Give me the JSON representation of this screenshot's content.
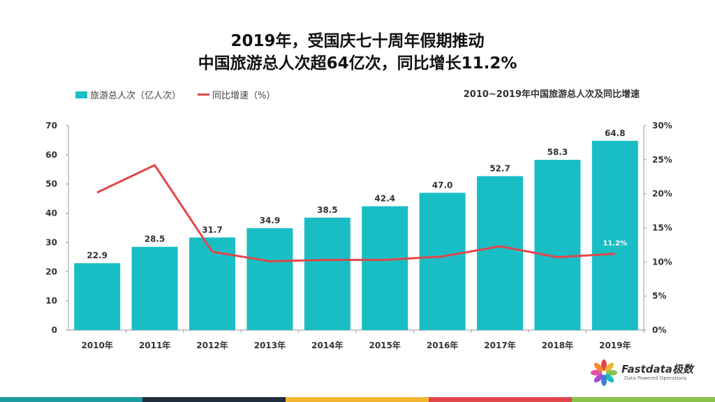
{
  "title_line1": "2019年，受国庆七十周年假期推动",
  "title_line2": "中国旅游总人次超64亿次，同比增长11.2%",
  "chart_subtitle": "2010~2019年中国旅游总人次及同比增速",
  "logo": {
    "name": "Fastdata极数",
    "tagline": "Data Powered Operations"
  },
  "colors": {
    "bar": "#19BEC5",
    "line": "#E0464A",
    "footer": [
      "#1B9AA0",
      "#1F2D3D",
      "#F2B531",
      "#E0464A",
      "#8BC34A"
    ]
  },
  "chart_data": {
    "type": "bar+line",
    "categories": [
      "2010年",
      "2011年",
      "2012年",
      "2013年",
      "2014年",
      "2015年",
      "2016年",
      "2017年",
      "2018年",
      "2019年"
    ],
    "series": [
      {
        "name": "旅游总人次（亿人次）",
        "type": "bar",
        "axis": "left",
        "values": [
          22.9,
          28.5,
          31.7,
          34.9,
          38.5,
          42.4,
          47.0,
          52.7,
          58.3,
          64.8
        ],
        "labels": [
          "22.9",
          "28.5",
          "31.7",
          "34.9",
          "38.5",
          "42.4",
          "47.0",
          "52.7",
          "58.3",
          "64.8"
        ]
      },
      {
        "name": "同比增速（%）",
        "type": "line",
        "axis": "right",
        "values": [
          20.2,
          24.2,
          11.5,
          10.1,
          10.3,
          10.3,
          10.8,
          12.3,
          10.7,
          11.2
        ],
        "last_label": "11.2%"
      }
    ],
    "y_left": {
      "min": 0,
      "max": 70,
      "ticks": [
        "0",
        "10",
        "20",
        "30",
        "40",
        "50",
        "60",
        "70"
      ]
    },
    "y_right": {
      "min": 0,
      "max": 30,
      "ticks": [
        "0%",
        "5%",
        "10%",
        "15%",
        "20%",
        "25%",
        "30%"
      ]
    },
    "grid": false,
    "legend_position": "top-left"
  }
}
